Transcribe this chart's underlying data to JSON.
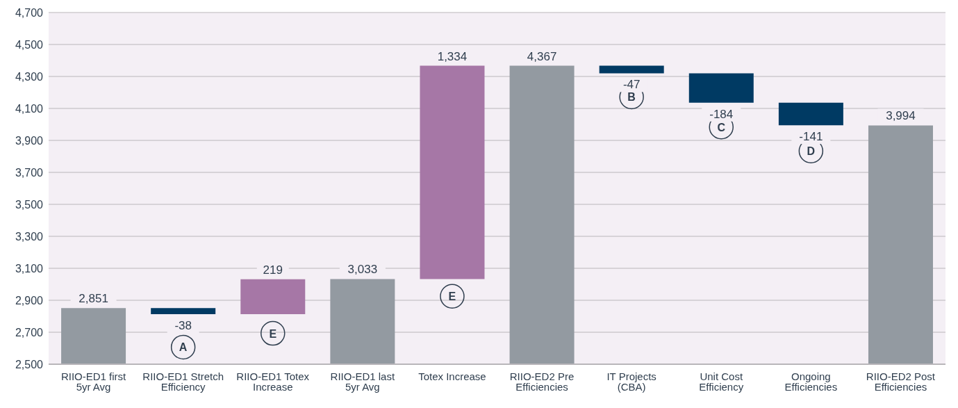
{
  "chart_data": {
    "type": "bar",
    "categories": [
      "RIIO-ED1 first 5yr Avg",
      "RIIO-ED1 Stretch Efficiency",
      "RIIO-ED1 Totex Increase",
      "RIIO-ED1 last 5yr Avg",
      "Totex Increase",
      "RIIO-ED2 Pre Efficiencies",
      "IT Projects (CBA)",
      "Unit Cost Efficiency",
      "Ongoing Efficiencies",
      "RIIO-ED2 Post Efficiencies"
    ],
    "values": [
      2851,
      -38,
      219,
      3033,
      1334,
      4367,
      -47,
      -184,
      -141,
      3994
    ],
    "base": [
      null,
      2851,
      2813,
      null,
      3033,
      null,
      4367,
      4320,
      4136,
      null
    ],
    "colors": [
      "#939aa1",
      "#003a63",
      "#a677a6",
      "#939aa1",
      "#a677a6",
      "#939aa1",
      "#003a63",
      "#003a63",
      "#003a63",
      "#939aa1"
    ],
    "value_labels": [
      "2,851",
      "-38",
      "219",
      "3,033",
      "1,334",
      "4,367",
      "-47",
      "-184",
      "-141",
      "3,994"
    ],
    "annotations": [
      {
        "text": "A",
        "x": "RIIO-ED1 Stretch Efficiency",
        "y": 2607
      },
      {
        "text": "E",
        "x": "RIIO-ED1 Totex Increase",
        "y": 2693
      },
      {
        "text": "E",
        "x": "Totex Increase",
        "y": 2925
      },
      {
        "text": "B",
        "x": "IT Projects (CBA)",
        "y": 4172
      },
      {
        "text": "C",
        "x": "Unit Cost Efficiency",
        "y": 3984
      },
      {
        "text": "D",
        "x": "Ongoing Efficiencies",
        "y": 3834
      }
    ],
    "ylim": [
      2500,
      4700
    ],
    "yticks": [
      {
        "value": 2500,
        "label": "2,500"
      },
      {
        "value": 2700,
        "label": "2,700"
      },
      {
        "value": 2900,
        "label": "2,900"
      },
      {
        "value": 3100,
        "label": "3,100"
      },
      {
        "value": 3300,
        "label": "3,300"
      },
      {
        "value": 3500,
        "label": "3,500"
      },
      {
        "value": 3700,
        "label": "3,700"
      },
      {
        "value": 3900,
        "label": "3,900"
      },
      {
        "value": 4100,
        "label": "4,100"
      },
      {
        "value": 4300,
        "label": "4,300"
      },
      {
        "value": 4500,
        "label": "4,500"
      },
      {
        "value": 4700,
        "label": "4,700"
      }
    ],
    "grid": "y"
  }
}
